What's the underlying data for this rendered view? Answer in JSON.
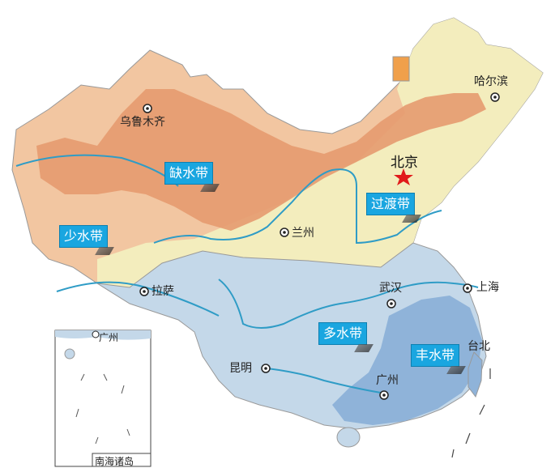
{
  "zones": {
    "queshui": "缺水带",
    "shaoshui": "少水带",
    "guodu": "过渡带",
    "duoshui": "多水带",
    "fengshui": "丰水带"
  },
  "cities": {
    "urumqi": "乌鲁木齐",
    "harbin": "哈尔滨",
    "beijing": "北京",
    "lanzhou": "兰州",
    "lhasa": "拉萨",
    "wuhan": "武汉",
    "shanghai": "上海",
    "kunming": "昆明",
    "guangzhou": "广州",
    "taipei": "台北"
  },
  "inset": {
    "title": "南海诸岛",
    "guangzhou": "广州"
  },
  "colors": {
    "queshui": "#e59a6f",
    "shaoshui": "#f2c6a1",
    "guodu": "#f3edbd",
    "duoshui": "#c4d8e9",
    "fengshui": "#8fb3d9",
    "river": "#2f9cc6",
    "capital_star": "#e11b1b"
  }
}
